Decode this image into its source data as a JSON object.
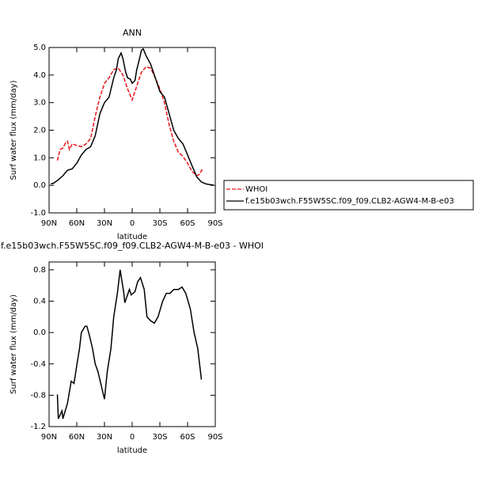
{
  "chart_data": [
    {
      "type": "line",
      "title": "ANN",
      "xlabel": "latitude",
      "ylabel": "Surf water flux (mm/day)",
      "xlim": [
        90,
        -90
      ],
      "xticks": [
        {
          "value": 90,
          "label": "90N"
        },
        {
          "value": 60,
          "label": "60N"
        },
        {
          "value": 30,
          "label": "30N"
        },
        0,
        {
          "value": -30,
          "label": "30S"
        },
        {
          "value": -60,
          "label": "60S"
        },
        {
          "value": -90,
          "label": "90S"
        }
      ],
      "ylim": [
        -1,
        5
      ],
      "yticks": [
        {
          "value": -1,
          "label": "-1.0"
        },
        {
          "value": 0,
          "label": "0.0"
        },
        {
          "value": 1,
          "label": "1.0"
        },
        {
          "value": 2,
          "label": "2.0"
        },
        {
          "value": 3,
          "label": "3.0"
        },
        {
          "value": 4,
          "label": "4.0"
        },
        {
          "value": 5,
          "label": "5.0"
        }
      ],
      "legend": "right",
      "series": [
        {
          "name": "WHOI",
          "color": "#e8141c",
          "dash": true,
          "x": [
            81,
            78,
            75,
            72,
            70,
            68,
            65,
            60,
            55,
            50,
            45,
            40,
            35,
            30,
            25,
            20,
            15,
            10,
            5,
            0,
            -5,
            -10,
            -15,
            -20,
            -25,
            -30,
            -35,
            -40,
            -45,
            -50,
            -55,
            -60,
            -65,
            -70,
            -73,
            -76
          ],
          "values": [
            0.9,
            1.3,
            1.35,
            1.55,
            1.6,
            1.3,
            1.5,
            1.45,
            1.4,
            1.5,
            1.7,
            2.5,
            3.2,
            3.7,
            3.9,
            4.2,
            4.25,
            4.0,
            3.5,
            3.1,
            3.6,
            4.1,
            4.3,
            4.25,
            3.9,
            3.5,
            3.0,
            2.2,
            1.6,
            1.2,
            1.05,
            0.8,
            0.5,
            0.35,
            0.4,
            0.6
          ]
        },
        {
          "name": "f.e15b03wch.F55W5SC.f09_f09.CLB2-AGW4-M-B-e03",
          "color": "#000000",
          "dash": false,
          "x": [
            88,
            85,
            80,
            75,
            70,
            65,
            60,
            55,
            50,
            45,
            40,
            35,
            30,
            25,
            20,
            17,
            15,
            12,
            10,
            7,
            5,
            2,
            0,
            -3,
            -5,
            -8,
            -10,
            -12,
            -15,
            -20,
            -25,
            -30,
            -35,
            -40,
            -45,
            -50,
            -55,
            -60,
            -65,
            -70,
            -75,
            -80,
            -85,
            -88
          ],
          "values": [
            0.05,
            0.08,
            0.2,
            0.35,
            0.55,
            0.6,
            0.8,
            1.1,
            1.3,
            1.4,
            1.8,
            2.6,
            3.0,
            3.2,
            3.9,
            4.2,
            4.6,
            4.8,
            4.6,
            4.1,
            3.9,
            3.85,
            3.7,
            3.8,
            4.2,
            4.6,
            4.9,
            4.95,
            4.7,
            4.4,
            3.9,
            3.4,
            3.2,
            2.6,
            2.0,
            1.7,
            1.5,
            1.1,
            0.7,
            0.3,
            0.12,
            0.05,
            0.02,
            0.02
          ]
        }
      ]
    },
    {
      "type": "line",
      "title": "f.e15b03wch.F55W5SC.f09_f09.CLB2-AGW4-M-B-e03 - WHOI",
      "xlabel": "latitude",
      "ylabel": "Surf water flux (mm/day)",
      "xlim": [
        90,
        -90
      ],
      "xticks": [
        {
          "value": 90,
          "label": "90N"
        },
        {
          "value": 60,
          "label": "60N"
        },
        {
          "value": 30,
          "label": "30N"
        },
        0,
        {
          "value": -30,
          "label": "30S"
        },
        {
          "value": -60,
          "label": "60S"
        },
        {
          "value": -90,
          "label": "90S"
        }
      ],
      "ylim": [
        -1.2,
        0.9
      ],
      "yticks": [
        -1.2,
        -0.8,
        -0.4,
        {
          "value": 0,
          "label": "0.0"
        },
        0.4,
        0.8
      ],
      "series": [
        {
          "color": "#000000",
          "dash": false,
          "x": [
            81,
            80,
            76,
            75,
            70,
            66,
            63,
            60,
            57,
            55,
            51,
            49,
            46,
            43,
            40,
            37,
            33,
            30,
            27,
            23,
            20,
            16,
            13,
            9,
            8,
            3,
            1,
            -3,
            -6,
            -9,
            -13,
            -16,
            -20,
            -24,
            -28,
            -33,
            -37,
            -41,
            -45,
            -50,
            -54,
            -58,
            -63,
            -67,
            -71,
            -75
          ],
          "values": [
            -0.79,
            -1.1,
            -1.0,
            -1.1,
            -0.9,
            -0.62,
            -0.65,
            -0.42,
            -0.2,
            0.0,
            0.08,
            0.08,
            -0.05,
            -0.2,
            -0.4,
            -0.5,
            -0.7,
            -0.85,
            -0.5,
            -0.2,
            0.2,
            0.5,
            0.8,
            0.5,
            0.38,
            0.55,
            0.48,
            0.52,
            0.65,
            0.7,
            0.55,
            0.2,
            0.15,
            0.12,
            0.2,
            0.4,
            0.5,
            0.5,
            0.55,
            0.55,
            0.58,
            0.5,
            0.3,
            0.0,
            -0.2,
            -0.6
          ]
        }
      ]
    }
  ]
}
